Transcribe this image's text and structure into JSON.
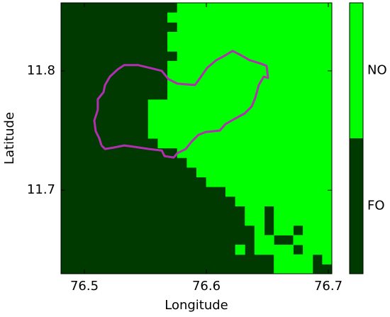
{
  "chart_data": {
    "type": "raster",
    "xlabel": "Longitude",
    "ylabel": "Latitude",
    "xlim": [
      76.4808,
      76.7029
    ],
    "ylim": [
      11.63,
      11.857
    ],
    "xticks": [
      76.5,
      76.6,
      76.7
    ],
    "yticks": [
      11.7,
      11.8
    ],
    "classes": [
      {
        "name": "FO",
        "color": "#003a00"
      },
      {
        "name": "NO",
        "color": "#00ff00"
      }
    ],
    "no_runs": [
      [
        [
          12,
          27
        ]
      ],
      [
        [
          11,
          27
        ]
      ],
      [
        [
          12,
          27
        ]
      ],
      [
        [
          11,
          27
        ]
      ],
      [
        [
          11,
          27
        ]
      ],
      [
        [
          12,
          27
        ]
      ],
      [
        [
          11,
          27
        ]
      ],
      [
        [
          11,
          27
        ]
      ],
      [
        [
          11,
          27
        ]
      ],
      [
        [
          11,
          27
        ]
      ],
      [
        [
          9,
          27
        ]
      ],
      [
        [
          9,
          27
        ]
      ],
      [
        [
          9,
          27
        ]
      ],
      [
        [
          9,
          27
        ]
      ],
      [
        [
          10,
          27
        ]
      ],
      [
        [
          12,
          27
        ]
      ],
      [
        [
          13,
          27
        ]
      ],
      [
        [
          14,
          27
        ]
      ],
      [
        [
          15,
          27
        ]
      ],
      [
        [
          17,
          27
        ]
      ],
      [
        [
          18,
          27
        ]
      ],
      [
        [
          19,
          20
        ],
        [
          22,
          27
        ]
      ],
      [
        [
          19,
          20
        ],
        [
          22,
          27
        ]
      ],
      [
        [
          20,
          20
        ],
        [
          22,
          23
        ],
        [
          25,
          27
        ]
      ],
      [
        [
          20,
          21
        ],
        [
          24,
          27
        ]
      ],
      [
        [
          18,
          18
        ],
        [
          20,
          23
        ],
        [
          25,
          27
        ]
      ],
      [
        [
          22,
          25
        ],
        [
          27,
          27
        ]
      ],
      [
        [
          22,
          25
        ]
      ]
    ],
    "boundary": {
      "color": "#b030b0",
      "lon": [
        76.514,
        76.5169,
        76.5238,
        76.5326,
        76.5413,
        76.5529,
        76.5634,
        76.5657,
        76.5733,
        76.5762,
        76.5831,
        76.5878,
        76.5936,
        76.5994,
        76.611,
        76.6157,
        76.6227,
        76.6314,
        76.6372,
        76.6401,
        76.643,
        76.6471,
        76.6506,
        76.6494,
        76.6448,
        76.6355,
        76.6285,
        76.6215,
        76.6157,
        76.6081,
        76.6006,
        76.5948,
        76.5907,
        76.5762,
        76.5692,
        76.5634,
        76.5541,
        76.5442,
        76.5326,
        76.5273,
        76.5209,
        76.5169,
        76.5157,
        76.511,
        76.511,
        76.5081,
        76.5093,
        76.5122,
        76.514
      ],
      "lat": [
        11.7375,
        11.7345,
        11.7357,
        11.7375,
        11.7363,
        11.7345,
        11.7333,
        11.7286,
        11.7274,
        11.731,
        11.7345,
        11.7405,
        11.7464,
        11.7488,
        11.75,
        11.7554,
        11.7595,
        11.7643,
        11.7702,
        11.7774,
        11.7881,
        11.7952,
        11.794,
        11.8042,
        11.806,
        11.8089,
        11.8131,
        11.8167,
        11.8131,
        11.8089,
        11.8024,
        11.794,
        11.7881,
        11.7893,
        11.7929,
        11.8,
        11.8024,
        11.8048,
        11.8048,
        11.8012,
        11.7952,
        11.7881,
        11.7821,
        11.7762,
        11.7673,
        11.7583,
        11.7494,
        11.7435,
        11.7375
      ]
    }
  }
}
